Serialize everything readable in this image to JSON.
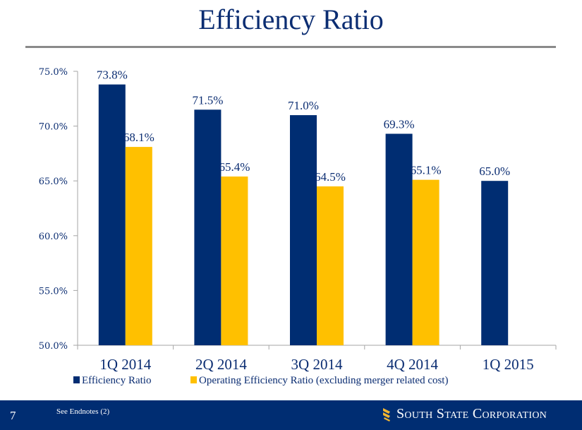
{
  "header": {
    "title": "Efficiency Ratio"
  },
  "colors": {
    "primary": "#002d72",
    "secondary": "#ffc000",
    "axis": "#a6a6a6"
  },
  "chart_data": {
    "type": "bar",
    "title": "Efficiency Ratio",
    "xlabel": "",
    "ylabel": "",
    "ylim": [
      50,
      75
    ],
    "yticks": [
      50,
      55,
      60,
      65,
      70,
      75
    ],
    "ytick_labels": [
      "50.0%",
      "55.0%",
      "60.0%",
      "65.0%",
      "70.0%",
      "75.0%"
    ],
    "categories": [
      "1Q 2014",
      "2Q 2014",
      "3Q 2014",
      "4Q 2014",
      "1Q 2015"
    ],
    "series": [
      {
        "name": "Efficiency Ratio",
        "color": "#002d72",
        "values": [
          73.8,
          71.5,
          71.0,
          69.3,
          65.0
        ],
        "labels": [
          "73.8%",
          "71.5%",
          "71.0%",
          "69.3%",
          "65.0%"
        ]
      },
      {
        "name": "Operating Efficiency Ratio (excluding merger related cost)",
        "color": "#ffc000",
        "values": [
          68.1,
          65.4,
          64.5,
          65.1,
          null
        ],
        "labels": [
          "68.1%",
          "65.4%",
          "64.5%",
          "65.1%",
          null
        ]
      }
    ],
    "legend": "bottom",
    "grid": false
  },
  "footer": {
    "page_number": "7",
    "endnote": "See Endnotes (2)",
    "logo_text": "South State Corporation"
  }
}
